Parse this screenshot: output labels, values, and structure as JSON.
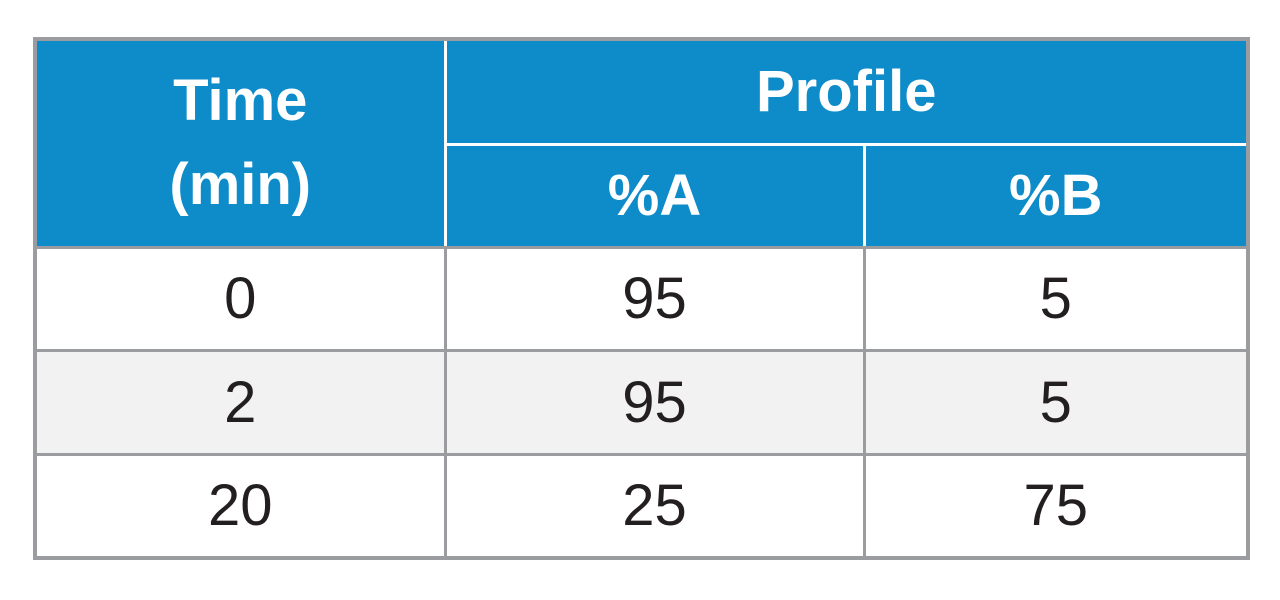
{
  "table": {
    "header": {
      "time_line1": "Time",
      "time_line2": "(min)",
      "profile_label": "Profile",
      "col_a_label": "%A",
      "col_b_label": "%B"
    },
    "rows": [
      {
        "time": "0",
        "a": "95",
        "b": "5"
      },
      {
        "time": "2",
        "a": "95",
        "b": "5"
      },
      {
        "time": "20",
        "a": "25",
        "b": "75"
      }
    ],
    "colors": {
      "header_bg": "#0D8CC9",
      "header_text": "#FFFFFF",
      "divider_white": "#FFFFFF",
      "border_gray": "#9A9CA0",
      "row_odd_bg": "#FFFFFF",
      "row_even_bg": "#F2F2F3",
      "body_text": "#231F20"
    }
  },
  "chart_data": {
    "type": "table",
    "title": "",
    "columns": [
      "Time (min)",
      "%A",
      "%B"
    ],
    "column_groups": [
      {
        "label": "Profile",
        "columns": [
          "%A",
          "%B"
        ]
      }
    ],
    "rows": [
      [
        0,
        95,
        5
      ],
      [
        2,
        95,
        5
      ],
      [
        20,
        25,
        75
      ]
    ]
  }
}
